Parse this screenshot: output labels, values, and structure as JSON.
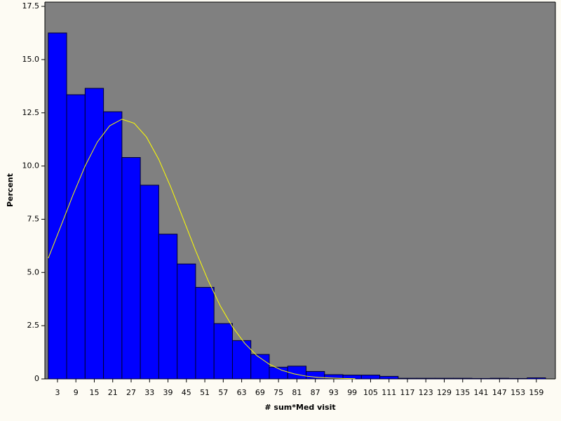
{
  "chart_data": {
    "type": "histogram",
    "x_label": "# sum*Med visit",
    "y_label": "Percent",
    "bins": [
      0,
      6,
      12,
      18,
      24,
      30,
      36,
      42,
      48,
      54,
      60,
      66,
      72,
      78,
      84,
      90,
      96,
      102,
      108,
      114,
      120,
      126,
      132,
      138,
      144,
      150,
      156,
      162
    ],
    "values": [
      16.25,
      13.35,
      13.65,
      12.55,
      10.4,
      9.1,
      6.8,
      5.4,
      4.3,
      2.6,
      1.8,
      1.15,
      0.55,
      0.6,
      0.35,
      0.2,
      0.18,
      0.18,
      0.12,
      0.03,
      0.03,
      0.03,
      0.03,
      0.02,
      0.03,
      0.02,
      0.05
    ],
    "color": "#0000ff",
    "plot_background": "#808080",
    "curve": {
      "color": "#ffff00",
      "x": [
        0,
        4,
        8,
        12,
        16,
        20,
        24,
        28,
        32,
        36,
        40,
        44,
        48,
        52,
        56,
        60,
        64,
        68,
        72,
        76,
        80,
        84,
        88,
        92,
        96,
        100
      ],
      "values": [
        5.67,
        7.14,
        8.62,
        10.0,
        11.13,
        11.89,
        12.2,
        12.01,
        11.36,
        10.31,
        8.98,
        7.51,
        6.03,
        4.65,
        3.44,
        2.45,
        1.67,
        1.09,
        0.69,
        0.41,
        0.24,
        0.13,
        0.07,
        0.04,
        0.02,
        0.01
      ]
    },
    "xlim": [
      -1.1,
      165.2
    ],
    "ylim": [
      0,
      17.7
    ],
    "xticks": [
      3,
      9,
      15,
      21,
      27,
      33,
      39,
      45,
      51,
      57,
      63,
      69,
      75,
      81,
      87,
      93,
      99,
      105,
      111,
      117,
      123,
      129,
      135,
      141,
      147,
      153,
      159
    ],
    "yticks": [
      0,
      2.5,
      {
        "value": 5,
        "label": "5.0"
      },
      7.5,
      {
        "value": 10,
        "label": "10.0"
      },
      12.5,
      {
        "value": 15,
        "label": "15.0"
      },
      17.5
    ]
  }
}
